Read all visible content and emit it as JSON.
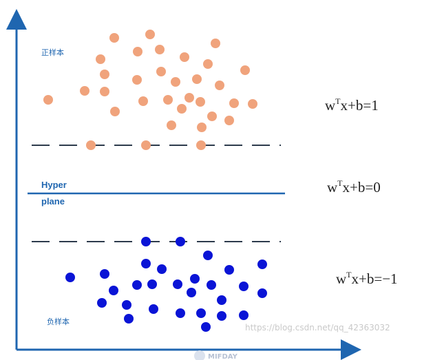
{
  "labels": {
    "positive_class": "正样本",
    "negative_class": "负样本",
    "hyperplane_line1": "Hyper",
    "hyperplane_line2": "plane"
  },
  "equations": {
    "upper": {
      "lhs": "w",
      "sup": "T",
      "rhs": "x+b=1"
    },
    "middle": {
      "lhs": "w",
      "sup": "T",
      "rhs": "x+b=0"
    },
    "lower": {
      "lhs": "w",
      "sup": "T",
      "rhs": "x+b=−1"
    }
  },
  "watermark": "https://blog.csdn.net/qq_42363032",
  "logo_text": "MIFDAY",
  "colors": {
    "axis": "#1f66b0",
    "hyperplane": "#1f66b0",
    "margin": "#2d3b4c",
    "positive": "#f0a37c",
    "negative": "#0a14d6",
    "label": "#1f66b0"
  }
}
